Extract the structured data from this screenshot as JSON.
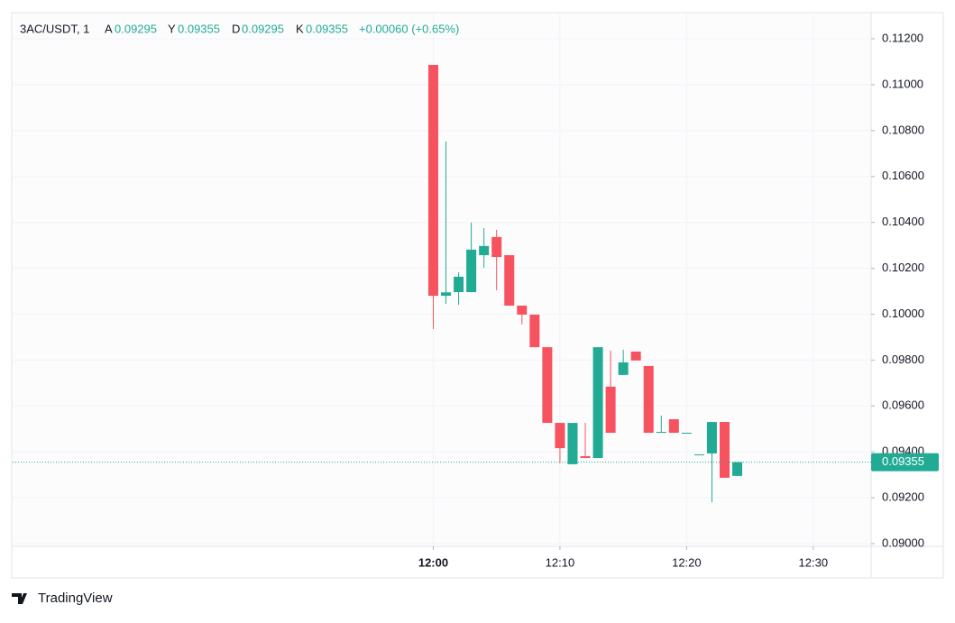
{
  "chart_data": {
    "type": "candlestick",
    "header": {
      "symbol": "3AC/USDT, 1",
      "fields": [
        {
          "label": "A",
          "value": "0.09295"
        },
        {
          "label": "Y",
          "value": "0.09355"
        },
        {
          "label": "D",
          "value": "0.09295"
        },
        {
          "label": "K",
          "value": "0.09355"
        }
      ],
      "change": "+0.00060 (+0.65%)"
    },
    "x": [
      "12:00",
      "12:01",
      "12:02",
      "12:03",
      "12:04",
      "12:05",
      "12:06",
      "12:07",
      "12:08",
      "12:09",
      "12:10",
      "12:11",
      "12:12",
      "12:13",
      "12:14",
      "12:15",
      "12:16",
      "12:17",
      "12:18",
      "12:19",
      "12:20",
      "12:21",
      "12:22",
      "12:23",
      "12:24"
    ],
    "open": [
      0.11086,
      0.1008,
      0.10096,
      0.10096,
      0.10257,
      0.10336,
      0.10257,
      0.10037,
      0.09998,
      0.09856,
      0.09526,
      0.09346,
      0.09381,
      0.09373,
      0.09684,
      0.09735,
      0.09837,
      0.09774,
      0.09483,
      0.09542,
      0.09483,
      0.09389,
      0.09393,
      0.0953,
      0.09295
    ],
    "high": [
      0.11086,
      0.10752,
      0.10182,
      0.10399,
      0.10375,
      0.10367,
      0.10257,
      0.10037,
      0.09998,
      0.09856,
      0.09526,
      0.09526,
      0.09526,
      0.09856,
      0.09841,
      0.09845,
      0.09837,
      0.09774,
      0.09558,
      0.09542,
      0.09483,
      0.09389,
      0.0953,
      0.0953,
      0.09355
    ],
    "low": [
      0.09935,
      0.10045,
      0.10041,
      0.10096,
      0.10202,
      0.10104,
      0.10037,
      0.09955,
      0.09856,
      0.09526,
      0.0935,
      0.09346,
      0.09373,
      0.09373,
      0.09483,
      0.09735,
      0.09798,
      0.09483,
      0.09483,
      0.09483,
      0.09483,
      0.09389,
      0.09181,
      0.09287,
      0.09295
    ],
    "close": [
      0.1008,
      0.10095,
      0.10163,
      0.10281,
      0.10297,
      0.10249,
      0.10037,
      0.09998,
      0.09856,
      0.09526,
      0.09416,
      0.09526,
      0.09373,
      0.09856,
      0.09483,
      0.0979,
      0.09798,
      0.09483,
      0.09487,
      0.09483,
      0.09483,
      0.09389,
      0.0953,
      0.09287,
      0.09355
    ],
    "up_color": "#22ab94",
    "down_color": "#f7525f",
    "xlim": [
      "11:27",
      "12:34"
    ],
    "xticks": [
      "12:00",
      "12:10",
      "12:20",
      "12:30"
    ],
    "ylim": [
      0.08988,
      0.11314
    ],
    "yticks": [
      {
        "value": 0.112,
        "label": "0.11200"
      },
      {
        "value": 0.11,
        "label": "0.11000"
      },
      {
        "value": 0.108,
        "label": "0.10800"
      },
      {
        "value": 0.106,
        "label": "0.10600"
      },
      {
        "value": 0.104,
        "label": "0.10400"
      },
      {
        "value": 0.102,
        "label": "0.10200"
      },
      {
        "value": 0.1,
        "label": "0.10000"
      },
      {
        "value": 0.098,
        "label": "0.09800"
      },
      {
        "value": 0.096,
        "label": "0.09600"
      },
      {
        "value": 0.094,
        "label": "0.09400"
      },
      {
        "value": 0.092,
        "label": "0.09200"
      },
      {
        "value": 0.09,
        "label": "0.09000"
      }
    ],
    "last_price": {
      "value": 0.09355,
      "label": "0.09355"
    },
    "grid": true,
    "brand": "TradingView"
  }
}
